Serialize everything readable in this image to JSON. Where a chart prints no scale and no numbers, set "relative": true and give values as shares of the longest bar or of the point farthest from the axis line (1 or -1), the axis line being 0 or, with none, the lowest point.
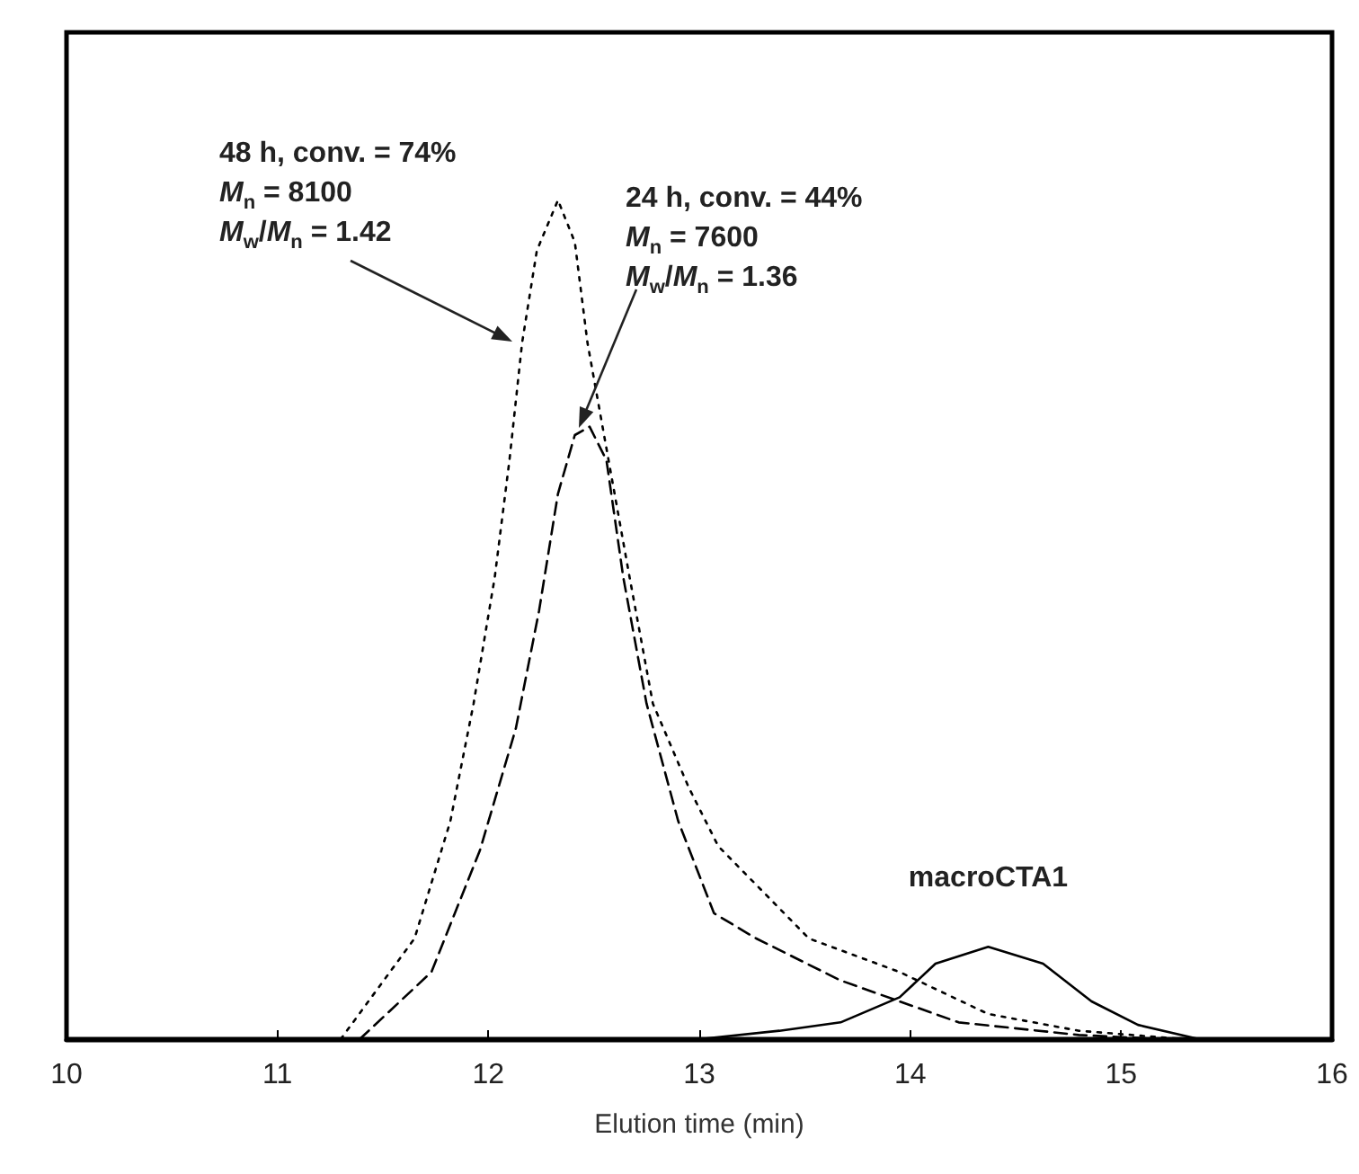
{
  "chart_data": {
    "type": "line",
    "relative": true,
    "xlabel": "Elution time (min)",
    "xlim": [
      10,
      16
    ],
    "xticks": [
      10,
      11,
      12,
      13,
      14,
      15,
      16
    ],
    "tick_labels": "x",
    "grid": false,
    "legend": false,
    "marker": "none",
    "series": [
      {
        "color": "#000000",
        "line_style": "dotted",
        "x": [
          11.3,
          11.65,
          11.82,
          11.93,
          12.03,
          12.1,
          12.16,
          12.23,
          12.33,
          12.41,
          12.47,
          12.57,
          12.67,
          12.78,
          12.95,
          13.09,
          13.52,
          13.95,
          14.37,
          14.8,
          15.3,
          15.6
        ],
        "values": [
          0,
          0.12,
          0.26,
          0.4,
          0.55,
          0.69,
          0.83,
          0.94,
          1.0,
          0.95,
          0.83,
          0.69,
          0.55,
          0.4,
          0.3,
          0.23,
          0.12,
          0.08,
          0.03,
          0.01,
          0,
          0
        ]
      },
      {
        "color": "#000000",
        "line_style": "dashed",
        "x": [
          11.39,
          11.73,
          11.96,
          12.13,
          12.24,
          12.33,
          12.41,
          12.48,
          12.56,
          12.64,
          12.75,
          12.9,
          13.07,
          13.27,
          13.67,
          14.23,
          14.8,
          15.2
        ],
        "values": [
          0,
          0.08,
          0.225,
          0.37,
          0.51,
          0.65,
          0.72,
          0.73,
          0.69,
          0.55,
          0.4,
          0.26,
          0.15,
          0.12,
          0.07,
          0.02,
          0.005,
          0
        ]
      },
      {
        "name": "macroCTA1",
        "color": "#000000",
        "line_style": "solid",
        "x": [
          13.0,
          13.38,
          13.67,
          13.95,
          14.12,
          14.37,
          14.63,
          14.86,
          15.08,
          15.37,
          15.6
        ],
        "values": [
          0,
          0.01,
          0.02,
          0.05,
          0.09,
          0.11,
          0.09,
          0.045,
          0.017,
          0,
          0
        ]
      }
    ],
    "annotations": [
      "48 h, conv. = 74%\nM$_{n}$ = 8100\nM$_{w}$/M$_{n}$ = 1.42",
      "24 h, conv. = 44%\nM$_{n}$ = 7600\nM$_{w}$/M$_{n}$ = 1.36"
    ]
  }
}
